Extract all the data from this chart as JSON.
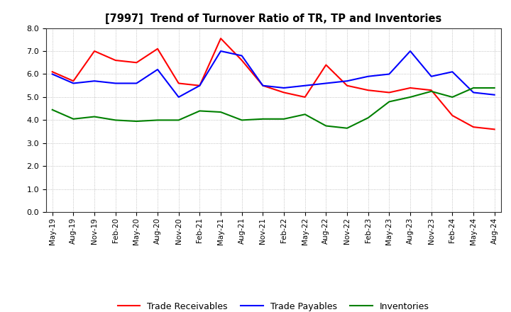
{
  "title": "[7997]  Trend of Turnover Ratio of TR, TP and Inventories",
  "labels": [
    "May-19",
    "Aug-19",
    "Nov-19",
    "Feb-20",
    "May-20",
    "Aug-20",
    "Nov-20",
    "Feb-21",
    "May-21",
    "Aug-21",
    "Nov-21",
    "Feb-22",
    "May-22",
    "Aug-22",
    "Nov-22",
    "Feb-23",
    "May-23",
    "Aug-23",
    "Nov-23",
    "Feb-24",
    "May-24",
    "Aug-24"
  ],
  "trade_receivables": [
    6.1,
    5.7,
    7.0,
    6.6,
    6.5,
    7.1,
    5.6,
    5.5,
    7.55,
    6.6,
    5.5,
    5.2,
    5.0,
    6.4,
    5.5,
    5.3,
    5.2,
    5.4,
    5.3,
    4.2,
    3.7,
    3.6
  ],
  "trade_payables": [
    6.0,
    5.6,
    5.7,
    5.6,
    5.6,
    6.2,
    5.0,
    5.5,
    7.0,
    6.8,
    5.5,
    5.4,
    5.5,
    5.6,
    5.7,
    5.9,
    6.0,
    7.0,
    5.9,
    6.1,
    5.2,
    5.1
  ],
  "inventories": [
    4.45,
    4.05,
    4.15,
    4.0,
    3.95,
    4.0,
    4.0,
    4.4,
    4.35,
    4.0,
    4.05,
    4.05,
    4.25,
    3.75,
    3.65,
    4.1,
    4.8,
    5.0,
    5.25,
    5.0,
    5.4,
    5.4
  ],
  "color_tr": "#FF0000",
  "color_tp": "#0000FF",
  "color_inv": "#008000",
  "ylim": [
    0.0,
    8.0
  ],
  "yticks": [
    0.0,
    1.0,
    2.0,
    3.0,
    4.0,
    5.0,
    6.0,
    7.0,
    8.0
  ],
  "legend_labels": [
    "Trade Receivables",
    "Trade Payables",
    "Inventories"
  ],
  "background_color": "#ffffff",
  "grid_color": "#b0b0b0"
}
